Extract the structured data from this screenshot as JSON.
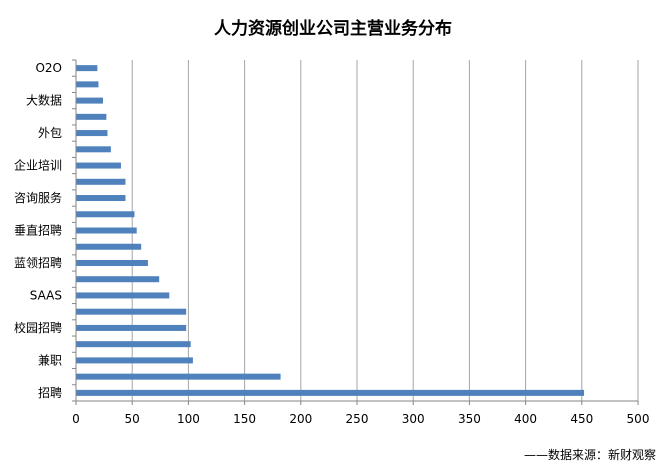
{
  "chart_data": {
    "type": "bar",
    "orientation": "horizontal",
    "title": "人力资源创业公司主营业务分布",
    "source": "——数据来源：新财观察",
    "categories": [
      "招聘",
      "",
      "兼职",
      "",
      "校园招聘",
      "",
      "SAAS",
      "",
      "蓝领招聘",
      "",
      "垂直招聘",
      "",
      "咨询服务",
      "",
      "企业培训",
      "",
      "外包",
      "",
      "大数据",
      "",
      "O2O"
    ],
    "values": [
      452,
      182,
      104,
      102,
      98,
      98,
      83,
      74,
      64,
      58,
      54,
      52,
      44,
      44,
      40,
      31,
      28,
      27,
      24,
      20,
      19
    ],
    "xlim": [
      0,
      500
    ],
    "xticks": [
      0,
      50,
      100,
      150,
      200,
      250,
      300,
      350,
      400,
      450,
      500
    ],
    "grid": true,
    "bar_color": "#4F81BD",
    "grid_color": "#A6A6A6",
    "axis_color": "#868686"
  }
}
